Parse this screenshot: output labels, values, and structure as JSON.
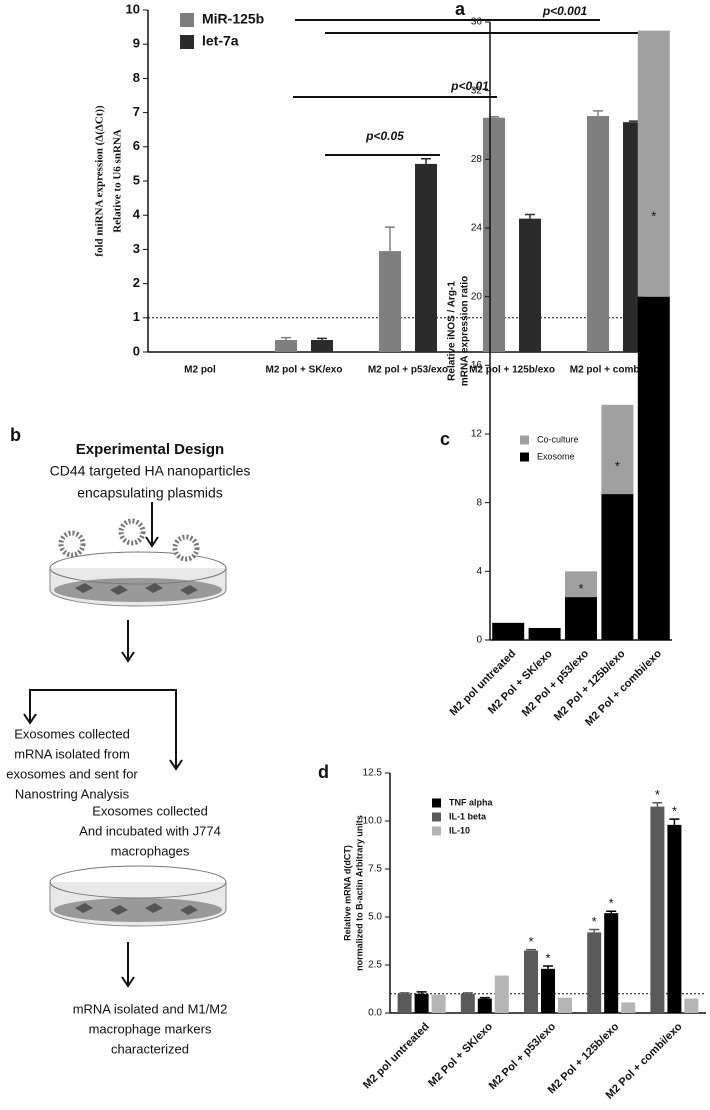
{
  "chart_data": [
    {
      "type": "bar",
      "label": "a",
      "ylabel": [
        "fold miRNA expression (Δ(ΔCt))",
        "Relative to U6 snRNA"
      ],
      "categories": [
        "M2 pol",
        "M2 pol + SK/exo",
        "M2 pol + p53/exo",
        "M2 pol + 125b/exo",
        "M2 pol + combi/exo"
      ],
      "series": [
        {
          "name": "MiR-125b",
          "color": "#7f7f7f",
          "values": [
            0,
            0.35,
            2.95,
            6.85,
            6.9
          ],
          "errors": [
            null,
            0.07,
            0.7,
            0.03,
            0.15
          ]
        },
        {
          "name": "let-7a",
          "color": "#2b2b2b",
          "values": [
            0,
            0.35,
            5.5,
            3.9,
            6.72
          ],
          "errors": [
            null,
            0.05,
            0.15,
            0.12,
            0.03
          ]
        }
      ],
      "ylim": [
        0,
        10
      ],
      "yticks": [
        0,
        1,
        2,
        3,
        4,
        5,
        6,
        7,
        8,
        9,
        10
      ],
      "hline": 1,
      "legend": "top-left",
      "annotations": [
        "p<0.001",
        "p<0.01",
        "p<0.05"
      ]
    },
    {
      "type": "stacked-bar",
      "label": "c",
      "ylabel": [
        "Relative iNOS / Arg-1",
        "mRNA expression ratio"
      ],
      "categories": [
        "M2 pol untreated",
        "M2 Pol + SK/exo",
        "M2 Pol + p53/exo",
        "M2 Pol + 125b/exo",
        "M2 Pol + combi/exo"
      ],
      "series": [
        {
          "name": "Exosome",
          "color": "#000000",
          "values": [
            1,
            0.7,
            2.5,
            8.5,
            20
          ]
        },
        {
          "name": "Co-culture",
          "color": "#a0a0a0",
          "values": [
            0,
            0,
            1.5,
            5.2,
            15.5
          ],
          "annotations": [
            null,
            null,
            "*",
            "*",
            "*"
          ]
        }
      ],
      "ylim": [
        0,
        36
      ],
      "yticks": [
        0,
        4,
        8,
        12,
        16,
        20,
        24,
        28,
        32,
        36
      ],
      "legend": "top-left"
    },
    {
      "type": "bar",
      "label": "d",
      "ylabel": [
        "Relative mRNA d(dCT)",
        "normalized to B-actin Arbitrary units"
      ],
      "categories": [
        "M2 pol untreated",
        "M2 Pol + SK/exo",
        "M2 Pol + p53/exo",
        "M2 Pol + 125b/exo",
        "M2 Pol + combi/exo"
      ],
      "series": [
        {
          "name": "TNF alpha",
          "color": "#000000",
          "values": [
            1.0,
            0.75,
            2.3,
            5.2,
            9.8
          ],
          "errors": [
            0.1,
            0.05,
            0.15,
            0.1,
            0.3
          ],
          "annotations": [
            null,
            null,
            "*",
            "*",
            "*"
          ]
        },
        {
          "name": "IL-1 beta",
          "color": "#5a5a5a",
          "values": [
            1.0,
            1.0,
            3.25,
            4.2,
            10.75
          ],
          "errors": [
            0.05,
            0.05,
            0.05,
            0.15,
            0.2
          ],
          "annotations": [
            null,
            null,
            "*",
            "*",
            "*"
          ]
        },
        {
          "name": "IL-10",
          "color": "#b5b5b5",
          "values": [
            0.95,
            1.95,
            0.8,
            0.55,
            0.75
          ]
        }
      ],
      "ylim": [
        0,
        12.5
      ],
      "yticks": [
        {
          "value": 0,
          "label": "0.0"
        },
        2.5,
        {
          "value": 5,
          "label": "5.0"
        },
        7.5,
        {
          "value": 10,
          "label": "10.0"
        },
        12.5
      ],
      "hline": 1,
      "legend": "top-left"
    }
  ],
  "diagram": {
    "label": "b",
    "title": "Experimental Design",
    "steps": [
      [
        "CD44 targeted HA nanoparticles",
        "encapsulating plasmids"
      ],
      [
        "Exosomes collected",
        "mRNA isolated from",
        "exosomes and sent for",
        "Nanostring Analysis"
      ],
      [
        "Exosomes collected",
        "And incubated with J774",
        "macrophages"
      ],
      [
        "mRNA isolated and M1/M2",
        "macrophage markers",
        "characterized"
      ]
    ]
  }
}
